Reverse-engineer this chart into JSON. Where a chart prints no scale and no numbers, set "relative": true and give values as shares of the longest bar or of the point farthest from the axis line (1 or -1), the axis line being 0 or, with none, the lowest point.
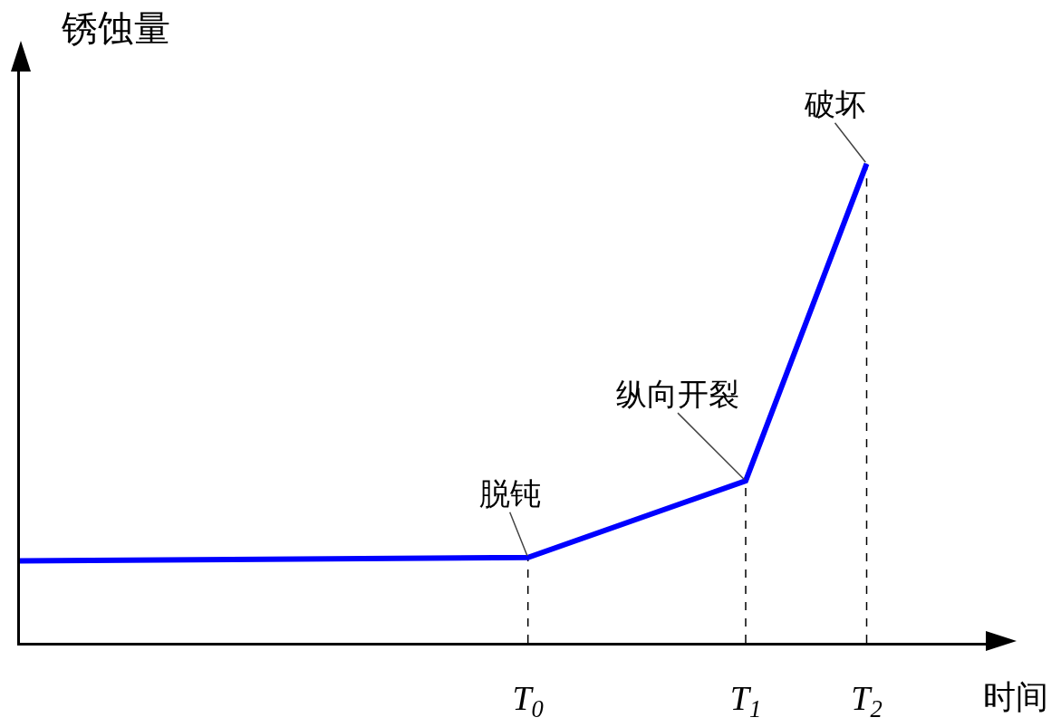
{
  "chart_data": {
    "type": "line",
    "relative": true,
    "xlabel": "时间",
    "ylabel": "锈蚀量",
    "categories": [
      null,
      null,
      null,
      null,
      null,
      null,
      null,
      null,
      null,
      null,
      null,
      null,
      null,
      null,
      null,
      null,
      null,
      null,
      null,
      null,
      null,
      "T$_{0}$",
      null,
      null,
      null,
      null,
      null,
      null,
      null,
      null,
      "T$_{1}$",
      null,
      null,
      null,
      null,
      "T$_{2}$",
      null,
      null,
      null,
      null,
      null
    ],
    "series": [
      {
        "color": "#0000ff",
        "values": [
          0.171,
          null,
          null,
          null,
          null,
          null,
          null,
          null,
          null,
          null,
          null,
          null,
          null,
          null,
          null,
          null,
          null,
          null,
          null,
          null,
          null,
          0.178,
          null,
          null,
          null,
          null,
          null,
          null,
          null,
          null,
          0.338,
          null,
          null,
          null,
          null,
          1,
          null,
          null,
          null,
          null,
          null
        ]
      }
    ],
    "ref_lines": [
      {
        "axis": "x",
        "value": "T$_{0}$",
        "line_style": "dashed"
      },
      {
        "axis": "x",
        "value": "T$_{1}$",
        "line_style": "dashed"
      },
      {
        "axis": "x",
        "value": "T$_{2}$",
        "line_style": "dashed"
      }
    ],
    "annotations": [
      {
        "text": "脱钝",
        "x": "T$_{0}$",
        "y": 0.178
      },
      {
        "text": "纵向开裂",
        "x": "T$_{1}$",
        "y": 0.338
      },
      {
        "text": "破坏",
        "x": "T$_{2}$",
        "y": 1
      }
    ],
    "grid": false,
    "marker": "none",
    "line_style": "solid"
  }
}
